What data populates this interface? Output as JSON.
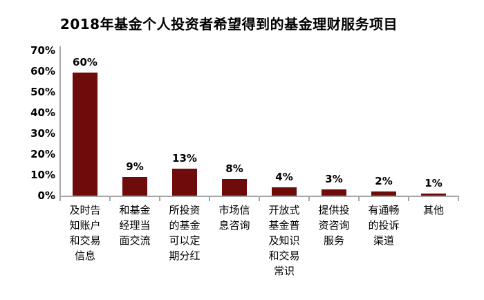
{
  "chart_data": {
    "type": "bar",
    "title": "2018年基金个人投资者希望得到的基金理财服务项目",
    "categories": [
      "及时告知账户和交易信息",
      "和基金经理当面交流",
      "所投资的基金可以定期分红",
      "市场信息咨询",
      "开放式基金普及知识和交易常识",
      "提供投资咨询服务",
      "有通畅的投诉渠道",
      "其他"
    ],
    "values": [
      60,
      9,
      13,
      8,
      4,
      3,
      2,
      1
    ],
    "value_labels": [
      "60%",
      "9%",
      "13%",
      "8%",
      "4%",
      "3%",
      "2%",
      "1%"
    ],
    "ytick_labels": [
      "0%",
      "10%",
      "20%",
      "30%",
      "40%",
      "50%",
      "60%",
      "70%"
    ],
    "ylim": [
      0,
      70
    ],
    "xlabel": "",
    "ylabel": "",
    "grid": false,
    "legend": "none",
    "colors": {
      "bar": "#6E0B0B",
      "axis": "#A6A6A6",
      "text": "#000000",
      "background": "#FFFFFF"
    }
  }
}
